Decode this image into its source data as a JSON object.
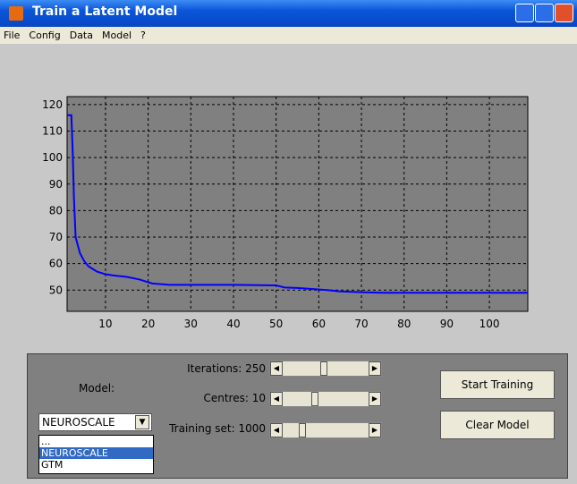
{
  "window": {
    "title": "Train a Latent Model"
  },
  "menu": [
    "File",
    "Config",
    "Data",
    "Model",
    "?"
  ],
  "chart_data": {
    "type": "line",
    "x": [
      1,
      2,
      2.3,
      2.6,
      3,
      4,
      5,
      6,
      7,
      8,
      10,
      12,
      15,
      18,
      20,
      21,
      25,
      30,
      40,
      50,
      52,
      55,
      58,
      62,
      65,
      70,
      75,
      80,
      90,
      100,
      109
    ],
    "series": [
      {
        "color": "#0000ff",
        "values": [
          116,
          116,
          103,
          85,
          70,
          64,
          61,
          59,
          58,
          57,
          56,
          55.5,
          55,
          54,
          53,
          52.5,
          52,
          52,
          52,
          51.8,
          51,
          50.8,
          50.5,
          50,
          49.5,
          49.2,
          49,
          49,
          49,
          49,
          49
        ]
      }
    ],
    "xlim": [
      1,
      109
    ],
    "ylim": [
      42,
      123
    ],
    "xticks": [
      10,
      20,
      30,
      40,
      50,
      60,
      70,
      80,
      90,
      100
    ],
    "yticks": [
      50,
      60,
      70,
      80,
      90,
      100,
      110,
      120
    ],
    "grid": true,
    "background": "#808080"
  },
  "controls": {
    "model_label": "Model:",
    "iterations": "Iterations: 250",
    "centres": "Centres: 10",
    "training_set": "Training set: 1000",
    "start_button": "Start Training",
    "clear_button": "Clear Model",
    "dropdown": {
      "selected": "NEUROSCALE",
      "options": [
        "...",
        "NEUROSCALE",
        "GTM"
      ]
    }
  }
}
